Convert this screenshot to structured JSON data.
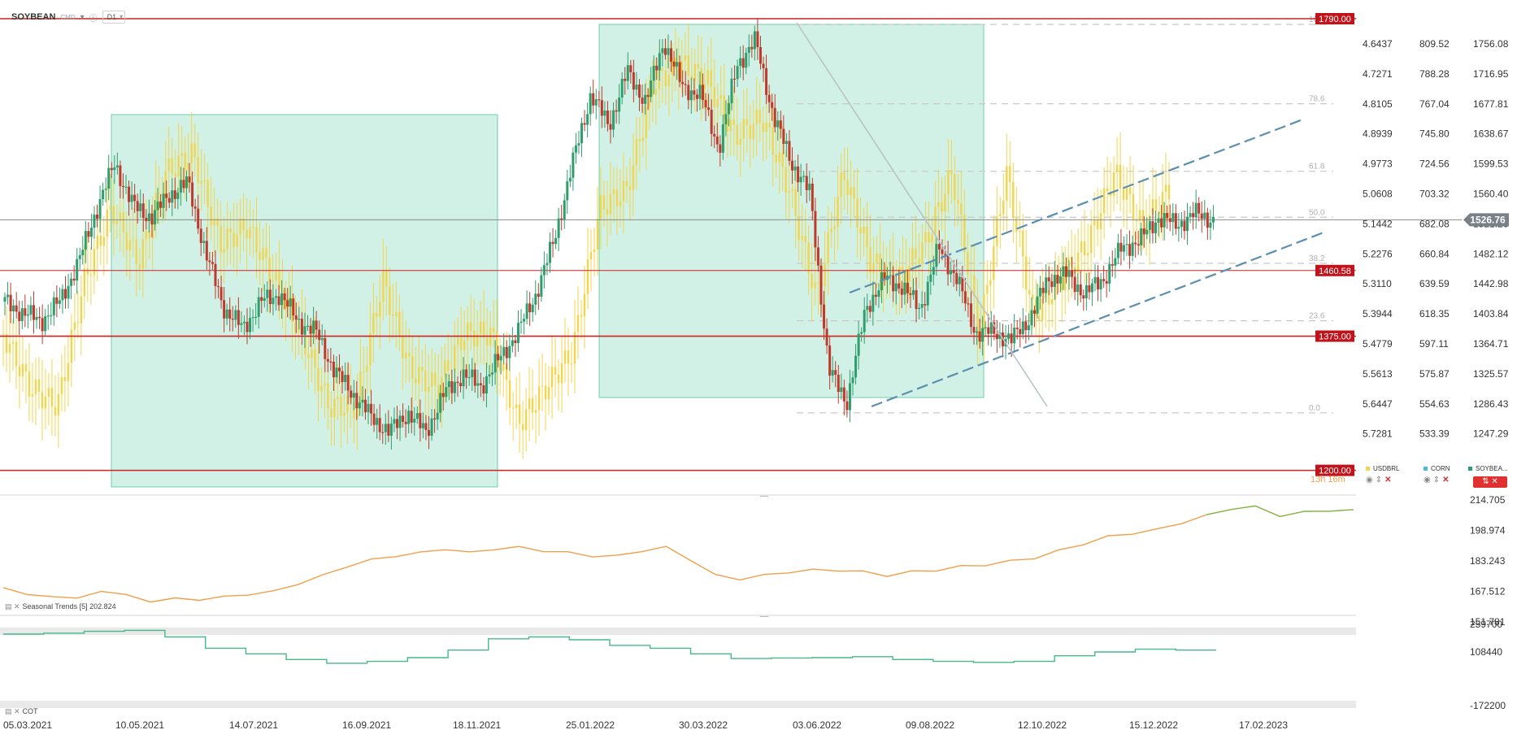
{
  "header": {
    "symbol": "SOYBEAN",
    "subtitle": "CMD",
    "timeframe": "D1"
  },
  "colors": {
    "candle_up": "#2e9e6e",
    "candle_down": "#c0392b",
    "usdbrl": "#f2d54e",
    "corn": "#4db6e8",
    "seasonal": "#f0a04b",
    "seasonal_recent": "#7fb23c",
    "cot": "#45b98a",
    "support_line": "#cc2222",
    "zone_fill": "#d2f1e6",
    "channel": "#5b8fb0"
  },
  "chart_data": [
    {
      "type": "candlestick",
      "panel": "main",
      "x_ticks": [
        "05.03.2021",
        "10.05.2021",
        "14.07.2021",
        "16.09.2021",
        "18.11.2021",
        "25.01.2022",
        "30.03.2022",
        "03.06.2022",
        "09.08.2022",
        "12.10.2022",
        "15.12.2022",
        "17.02.2023"
      ],
      "y_ticks_price": [
        "1756.08",
        "1716.95",
        "1677.81",
        "1638.67",
        "1599.53",
        "1560.40",
        "1521.26",
        "1482.12",
        "1442.98",
        "1403.84",
        "1364.71",
        "1325.57",
        "1286.43",
        "1247.29"
      ],
      "y_ticks_usdbrl": [
        "4.6437",
        "4.7271",
        "4.8105",
        "4.8939",
        "4.9773",
        "5.0608",
        "5.1442",
        "5.2276",
        "5.3110",
        "5.3944",
        "5.4779",
        "5.5613",
        "5.6447",
        "5.7281"
      ],
      "y_ticks_corn": [
        "809.52",
        "788.28",
        "767.04",
        "745.80",
        "724.56",
        "703.32",
        "682.08",
        "660.84",
        "639.59",
        "618.35",
        "597.11",
        "575.87",
        "554.63",
        "533.39"
      ],
      "last_price": "1526.76",
      "price_close_path": [
        1420,
        1405,
        1395,
        1420,
        1470,
        1540,
        1600,
        1545,
        1530,
        1560,
        1575,
        1480,
        1410,
        1385,
        1420,
        1430,
        1395,
        1380,
        1330,
        1300,
        1270,
        1250,
        1275,
        1250,
        1300,
        1325,
        1310,
        1345,
        1380,
        1430,
        1500,
        1600,
        1690,
        1650,
        1720,
        1680,
        1760,
        1700,
        1690,
        1620,
        1730,
        1760,
        1660,
        1600,
        1560,
        1330,
        1290,
        1410,
        1450,
        1440,
        1410,
        1490,
        1450,
        1380,
        1380,
        1370,
        1400,
        1450,
        1455,
        1430,
        1450,
        1490,
        1500,
        1530,
        1520,
        1535,
        1526.76
      ],
      "series": [
        {
          "name": "USDBRL",
          "values": [
            5.45,
            5.6,
            5.65,
            5.3,
            5.1,
            5.25,
            5.0,
            4.95,
            5.2,
            5.15,
            5.3,
            5.45,
            5.65,
            5.65,
            5.3,
            5.55,
            5.6,
            5.45,
            5.45,
            5.7,
            5.6,
            5.5,
            5.1,
            5.05,
            4.75,
            4.7,
            4.75,
            4.9,
            4.85,
            5.05,
            5.35,
            5.0,
            5.25,
            5.3,
            5.2,
            5.0,
            5.45,
            5.0,
            5.4,
            5.3,
            5.2,
            5.0,
            5.15,
            5.05
          ]
        },
        {
          "name": "CORN",
          "values": []
        },
        {
          "name": "SOYBEA..."
        }
      ],
      "levels": [
        {
          "label": "1790.00",
          "value": 1790.0
        },
        {
          "label": "1460.58",
          "value": 1460.58
        },
        {
          "label": "1375.00",
          "value": 1375.0
        },
        {
          "label": "1200.00",
          "value": 1200.0
        }
      ],
      "fib_levels": [
        {
          "label": "100",
          "value": 1790
        },
        {
          "label": "78.6",
          "value": 1678
        },
        {
          "label": "61.8",
          "value": 1590
        },
        {
          "label": "50.0",
          "value": 1530
        },
        {
          "label": "38.2",
          "value": 1470
        },
        {
          "label": "23.6",
          "value": 1395
        },
        {
          "label": "0.0",
          "value": 1275
        }
      ],
      "zones": [
        {
          "from": "mid-May 2021",
          "to": "early Dec 2021",
          "high": 1680,
          "low": 1190
        },
        {
          "from": "late Jan 2022",
          "to": "late Aug 2022",
          "high": 1785,
          "low": 1287
        }
      ],
      "annotations": [
        "13h 16m"
      ]
    },
    {
      "type": "line",
      "panel": "seasonal",
      "title": "Seasonal",
      "subtitle": "Trends",
      "period": "[5]",
      "value_label": "202.824",
      "y_ticks": [
        "214.705",
        "198.974",
        "183.243",
        "167.512",
        "151.781"
      ],
      "values": [
        168,
        164,
        163,
        162,
        166,
        164,
        160,
        162,
        161,
        163,
        164,
        166,
        170,
        175,
        180,
        184,
        186,
        188,
        190,
        188,
        190,
        191,
        189,
        188,
        186,
        186,
        189,
        191,
        184,
        175,
        173,
        175,
        177,
        178,
        178,
        177,
        175,
        177,
        178,
        180,
        181,
        183,
        185,
        189,
        193,
        197,
        199,
        201,
        205,
        209,
        213,
        214,
        209,
        211,
        212,
        212
      ]
    },
    {
      "type": "step",
      "panel": "cot",
      "title": "COT",
      "y_ticks": [
        "259700",
        "108440",
        "-172200"
      ],
      "values": [
        225000,
        230000,
        240000,
        245000,
        210000,
        150000,
        120000,
        90000,
        70000,
        80000,
        100000,
        140000,
        200000,
        210000,
        195000,
        165000,
        150000,
        120000,
        95000,
        98000,
        100000,
        105000,
        90000,
        80000,
        75000,
        80000,
        110000,
        130000,
        145000,
        140000
      ]
    }
  ]
}
